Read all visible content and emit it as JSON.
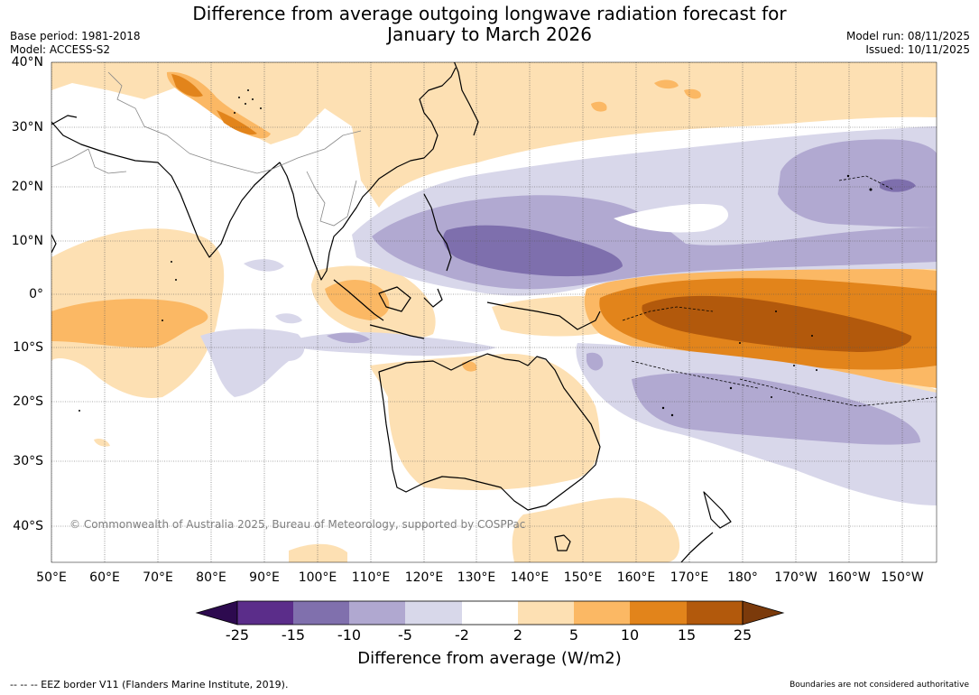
{
  "header": {
    "title_line1": "Difference from average outgoing longwave radiation forecast for",
    "title_line2": "January to March 2026",
    "base_period": "Base period: 1981-2018",
    "model": "Model: ACCESS-S2",
    "model_run": "Model run: 08/11/2025",
    "issued": "Issued: 10/11/2025"
  },
  "map": {
    "latitude_labels": [
      "40°N",
      "30°N",
      "20°N",
      "10°N",
      "0°",
      "10°S",
      "20°S",
      "30°S",
      "40°S"
    ],
    "longitude_labels": [
      "50°E",
      "60°E",
      "70°E",
      "80°E",
      "90°E",
      "100°E",
      "110°E",
      "120°E",
      "130°E",
      "140°E",
      "150°E",
      "160°E",
      "170°E",
      "180°",
      "170°W",
      "160°W",
      "150°W"
    ],
    "copyright": "© Commonwealth of Australia 2025, Bureau of Meteorology, supported by COSPPac",
    "colors": {
      "strong_negative": "#7e6fad",
      "moderate_negative": "#b1a9d1",
      "weak_negative": "#d8d7ea",
      "weak_positive": "#fde0b3",
      "moderate_positive": "#fbb864",
      "strong_positive": "#e2841b",
      "very_strong_positive": "#b2590c"
    }
  },
  "colorbar": {
    "title": "Difference from average (W/m2)",
    "tick_labels": [
      "-25",
      "-15",
      "-10",
      "-5",
      "-2",
      "2",
      "5",
      "10",
      "15",
      "25"
    ],
    "colors": [
      "#5b2d8a",
      "#8070ad",
      "#b0a8d0",
      "#d8d8ea",
      "#ffffff",
      "#fde0b3",
      "#fbb864",
      "#e2841b",
      "#b2590c"
    ],
    "extend_colors": {
      "low": "#2d0a4f",
      "high": "#7b3a0b"
    }
  },
  "footer": {
    "eez_note": "--  --  -- EEZ border V11 (Flanders Marine Institute, 2019).",
    "boundaries_note": "Boundaries are not considered authoritative"
  }
}
